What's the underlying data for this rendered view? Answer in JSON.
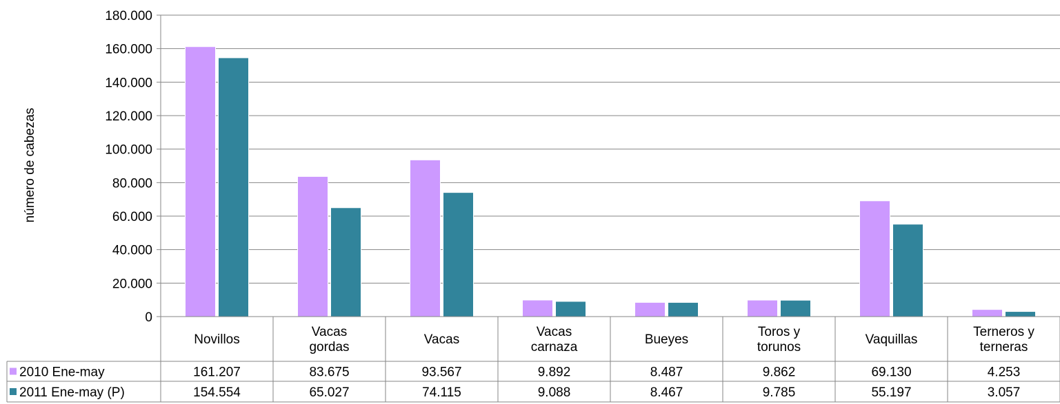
{
  "chart_data": {
    "type": "bar",
    "ylabel": "número de cabezas",
    "ylim": [
      0,
      180000
    ],
    "yticks": [
      "0",
      "20.000",
      "40.000",
      "60.000",
      "80.000",
      "100.000",
      "120.000",
      "140.000",
      "160.000",
      "180.000"
    ],
    "ytick_values": [
      0,
      20000,
      40000,
      60000,
      80000,
      100000,
      120000,
      140000,
      160000,
      180000
    ],
    "grid": true,
    "categories": [
      [
        "Novillos"
      ],
      [
        "Vacas",
        "gordas"
      ],
      [
        "Vacas"
      ],
      [
        "Vacas",
        "carnaza"
      ],
      [
        "Bueyes"
      ],
      [
        "Toros y",
        "torunos"
      ],
      [
        "Vaquillas"
      ],
      [
        "Terneros y",
        "terneras"
      ]
    ],
    "series": [
      {
        "name": "2010 Ene-may",
        "color": "#cc99ff",
        "values": [
          161207,
          83675,
          93567,
          9892,
          8487,
          9862,
          69130,
          4253
        ],
        "labels": [
          "161.207",
          "83.675",
          "93.567",
          "9.892",
          "8.487",
          "9.862",
          "69.130",
          "4.253"
        ]
      },
      {
        "name": "2011 Ene-may (P)",
        "color": "#31849b",
        "values": [
          154554,
          65027,
          74115,
          9088,
          8467,
          9785,
          55197,
          3057
        ],
        "labels": [
          "154.554",
          "65.027",
          "74.115",
          "9.088",
          "8.467",
          "9.785",
          "55.197",
          "3.057"
        ]
      }
    ]
  }
}
